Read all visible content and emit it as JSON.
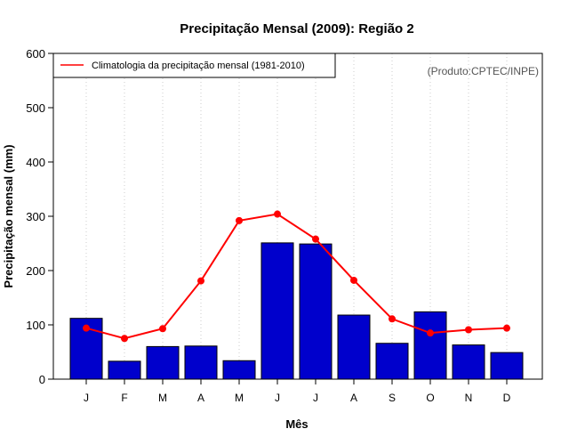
{
  "chart_data": {
    "type": "bar",
    "title": "Precipitação Mensal (2009): Região 2",
    "xlabel": "Mês",
    "ylabel": "Precipitação mensal (mm)",
    "ylim": [
      0,
      600
    ],
    "yticks": [
      "0",
      "100",
      "200",
      "300",
      "400",
      "500",
      "600"
    ],
    "categories": [
      "J",
      "F",
      "M",
      "A",
      "M",
      "J",
      "J",
      "A",
      "S",
      "O",
      "N",
      "D"
    ],
    "series": [
      {
        "name": "Precipitação mensal 2009",
        "type": "bar",
        "values": [
          112,
          33,
          60,
          61,
          34,
          251,
          249,
          118,
          66,
          124,
          63,
          49
        ]
      },
      {
        "name": "Climatologia da precipitação mensal (1981-2010)",
        "type": "line",
        "values": [
          94,
          75,
          93,
          181,
          292,
          304,
          258,
          182,
          111,
          85,
          91,
          94
        ]
      }
    ],
    "legend": {
      "position": "top-left",
      "label": "Climatologia da precipitação mensal (1981-2010)"
    },
    "annotation": "(Produto:CPTEC/INPE)",
    "grid": "vertical-dotted"
  },
  "colors": {
    "bar_fill": "#0000cc",
    "line": "#ff0000",
    "grid": "#cccccc"
  }
}
